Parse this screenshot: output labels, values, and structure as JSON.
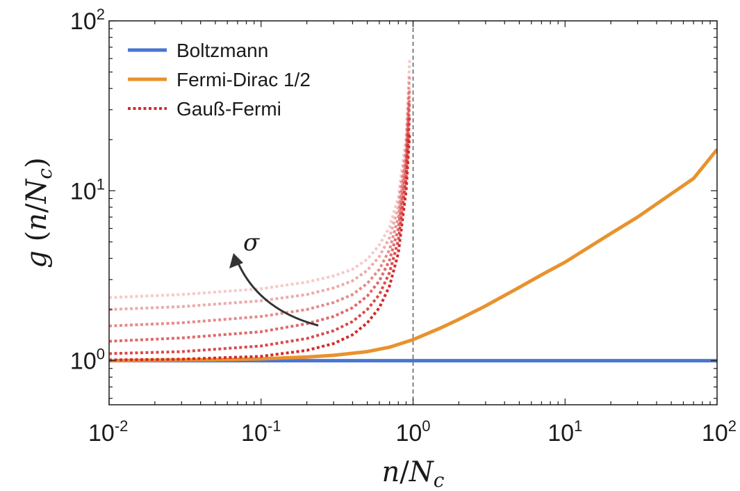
{
  "chart_data": {
    "type": "line",
    "xscale": "log",
    "yscale": "log",
    "xlim": [
      0.01,
      100
    ],
    "ylim": [
      0.55,
      100
    ],
    "xlabel": "n/N_c",
    "ylabel": "g (n/N_c)",
    "xlabel_parts": [
      "n",
      "/",
      "N",
      "c"
    ],
    "ylabel_parts": [
      "g",
      " (",
      "n",
      "/",
      "N",
      "c",
      ")"
    ],
    "x_ticks": [
      {
        "value": 0.01,
        "base": "10",
        "exp": "-2"
      },
      {
        "value": 0.1,
        "base": "10",
        "exp": "-1"
      },
      {
        "value": 1,
        "base": "10",
        "exp": "0"
      },
      {
        "value": 10,
        "base": "10",
        "exp": "1"
      },
      {
        "value": 100,
        "base": "10",
        "exp": "2"
      }
    ],
    "y_ticks": [
      {
        "value": 1,
        "base": "10",
        "exp": "0"
      },
      {
        "value": 10,
        "base": "10",
        "exp": "1"
      },
      {
        "value": 100,
        "base": "10",
        "exp": "2"
      }
    ],
    "vline": {
      "x": 1,
      "color": "#555555",
      "style": "dashed"
    },
    "legend": {
      "position": "top-left",
      "entries": [
        {
          "label": "Boltzmann",
          "color": "#4a74d0",
          "style": "solid"
        },
        {
          "label": "Fermi-Dirac 1/2",
          "color": "#e8922e",
          "style": "solid"
        },
        {
          "label": "Gauß-Fermi",
          "color": "#d42a2a",
          "style": "dotted"
        }
      ]
    },
    "annotation": {
      "text": "σ",
      "meaning": "arrow indicating increasing sigma"
    },
    "series": [
      {
        "name": "Boltzmann",
        "color": "#4a74d0",
        "style": "solid",
        "x": [
          0.01,
          100
        ],
        "y": [
          1,
          1
        ]
      },
      {
        "name": "Fermi-Dirac 1/2",
        "color": "#e8922e",
        "style": "solid",
        "x": [
          0.01,
          0.02,
          0.05,
          0.1,
          0.2,
          0.3,
          0.5,
          0.7,
          1,
          1.5,
          2,
          3,
          5,
          7,
          10,
          20,
          30,
          50,
          70,
          100
        ],
        "y": [
          1.0,
          1.005,
          1.013,
          1.025,
          1.05,
          1.075,
          1.13,
          1.2,
          1.33,
          1.55,
          1.75,
          2.1,
          2.7,
          3.2,
          3.8,
          5.6,
          7.0,
          9.6,
          11.8,
          17.5
        ]
      },
      {
        "name": "Gauß-Fermi",
        "color": "#d42a2a",
        "style": "dotted",
        "opacity": 1.0,
        "x": [
          0.01,
          0.03,
          0.1,
          0.2,
          0.3,
          0.4,
          0.5,
          0.6,
          0.7,
          0.8,
          0.9,
          0.95
        ],
        "y": [
          1.01,
          1.02,
          1.06,
          1.15,
          1.26,
          1.42,
          1.67,
          2.05,
          2.75,
          4.3,
          10.0,
          22.0
        ]
      },
      {
        "color": "#d42a2a",
        "style": "dotted",
        "opacity": 0.85,
        "x": [
          0.01,
          0.03,
          0.1,
          0.2,
          0.3,
          0.4,
          0.5,
          0.6,
          0.7,
          0.8,
          0.9,
          0.95
        ],
        "y": [
          1.1,
          1.13,
          1.22,
          1.35,
          1.5,
          1.7,
          2.0,
          2.45,
          3.3,
          5.1,
          12.0,
          28.0
        ]
      },
      {
        "color": "#d42a2a",
        "style": "dotted",
        "opacity": 0.7,
        "x": [
          0.01,
          0.03,
          0.1,
          0.2,
          0.3,
          0.4,
          0.5,
          0.6,
          0.7,
          0.8,
          0.9,
          0.95
        ],
        "y": [
          1.3,
          1.36,
          1.48,
          1.65,
          1.82,
          2.05,
          2.4,
          2.95,
          3.9,
          6.0,
          14.0,
          34.0
        ]
      },
      {
        "color": "#d42a2a",
        "style": "dotted",
        "opacity": 0.55,
        "x": [
          0.01,
          0.03,
          0.1,
          0.2,
          0.3,
          0.4,
          0.5,
          0.6,
          0.7,
          0.8,
          0.9,
          0.95
        ],
        "y": [
          1.6,
          1.67,
          1.82,
          2.0,
          2.2,
          2.45,
          2.85,
          3.45,
          4.5,
          7.0,
          16.0,
          40.0
        ]
      },
      {
        "color": "#d42a2a",
        "style": "dotted",
        "opacity": 0.4,
        "x": [
          0.01,
          0.03,
          0.1,
          0.2,
          0.3,
          0.4,
          0.5,
          0.6,
          0.7,
          0.8,
          0.9,
          0.95
        ],
        "y": [
          2.0,
          2.08,
          2.25,
          2.45,
          2.68,
          2.95,
          3.4,
          4.1,
          5.3,
          8.0,
          18.0,
          48.0
        ]
      },
      {
        "color": "#d42a2a",
        "style": "dotted",
        "opacity": 0.25,
        "x": [
          0.01,
          0.03,
          0.1,
          0.2,
          0.3,
          0.4,
          0.5,
          0.6,
          0.7,
          0.8,
          0.9,
          0.95
        ],
        "y": [
          2.35,
          2.45,
          2.65,
          2.9,
          3.15,
          3.45,
          3.95,
          4.8,
          6.1,
          9.2,
          21.0,
          60.0
        ]
      }
    ]
  }
}
